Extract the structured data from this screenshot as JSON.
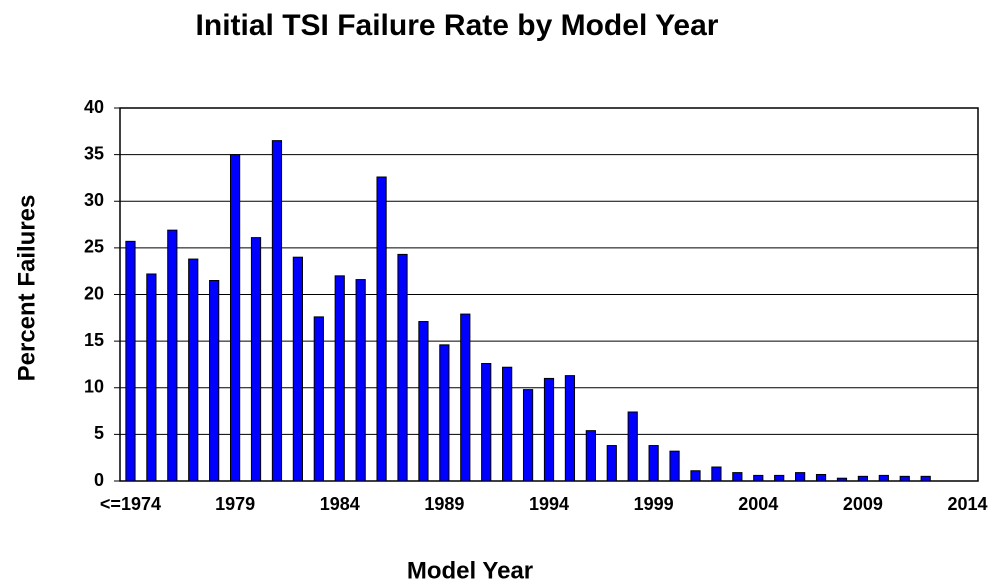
{
  "chart_data": {
    "type": "bar",
    "title": "Initial TSI Failure Rate by Model Year",
    "x_label": "Model Year",
    "y_label": "Percent Failures",
    "categories": [
      "<=1974",
      null,
      null,
      null,
      null,
      "1979",
      null,
      null,
      null,
      null,
      "1984",
      null,
      null,
      null,
      null,
      "1989",
      null,
      null,
      null,
      null,
      "1994",
      null,
      null,
      null,
      null,
      "1999",
      null,
      null,
      null,
      null,
      "2004",
      null,
      null,
      null,
      null,
      "2009",
      null,
      null,
      null,
      null,
      "2014"
    ],
    "values": [
      25.7,
      22.2,
      26.9,
      23.8,
      21.5,
      35.0,
      26.1,
      36.5,
      24.0,
      17.6,
      22.0,
      21.6,
      32.6,
      24.3,
      17.1,
      14.6,
      17.9,
      12.6,
      12.2,
      9.8,
      11.0,
      11.3,
      5.4,
      3.8,
      7.4,
      3.8,
      3.2,
      1.1,
      1.5,
      0.9,
      0.6,
      0.6,
      0.9,
      0.7,
      0.3,
      0.5,
      0.6,
      0.5,
      0.5,
      0,
      0
    ],
    "color": "#0000ff",
    "ylim": [
      0,
      40
    ],
    "yticks": [
      0,
      5,
      10,
      15,
      20,
      25,
      30,
      35,
      40
    ],
    "grid": true
  }
}
